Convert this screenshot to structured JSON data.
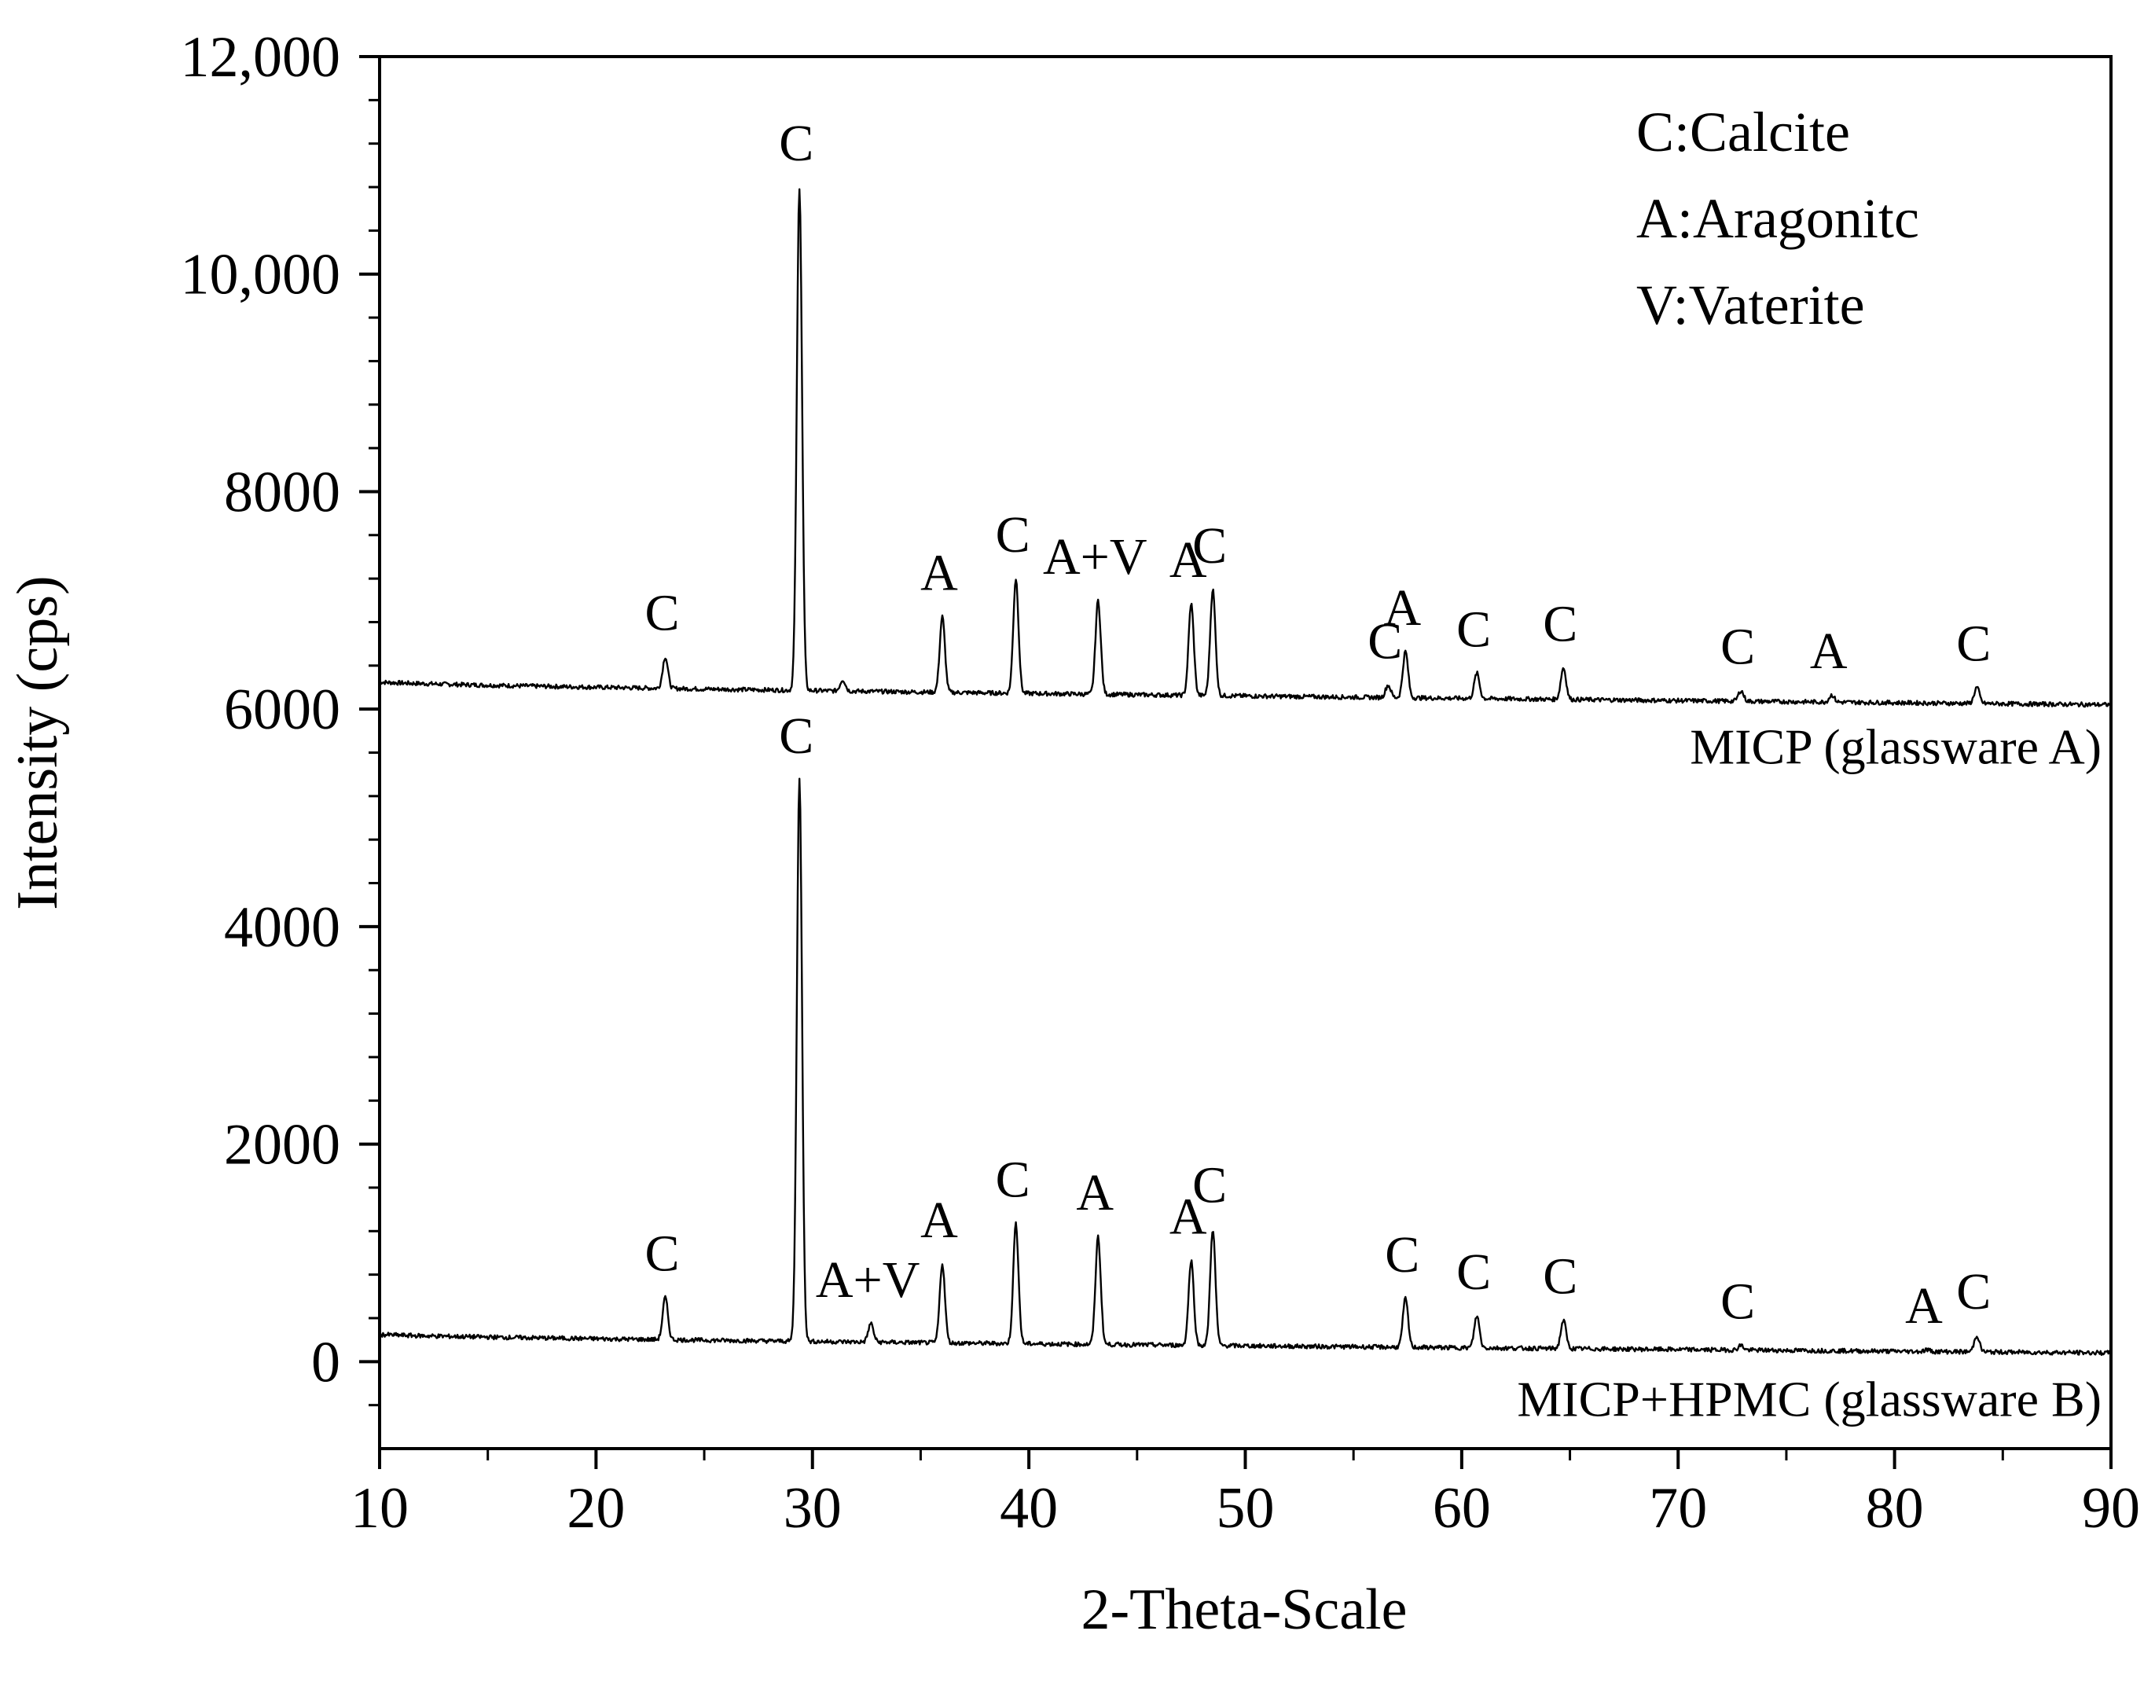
{
  "chart_data": {
    "type": "line",
    "title": "",
    "xlabel": "2-Theta-Scale",
    "ylabel": "Intensity (cps)",
    "xlim": [
      10,
      90
    ],
    "ylim": [
      -800,
      12000
    ],
    "x_ticks": [
      {
        "value": 10,
        "label": "10"
      },
      {
        "value": 20,
        "label": "20"
      },
      {
        "value": 30,
        "label": "30"
      },
      {
        "value": 40,
        "label": "40"
      },
      {
        "value": 50,
        "label": "50"
      },
      {
        "value": 60,
        "label": "60"
      },
      {
        "value": 70,
        "label": "70"
      },
      {
        "value": 80,
        "label": "80"
      },
      {
        "value": 90,
        "label": "90"
      }
    ],
    "y_ticks": [
      {
        "value": 0,
        "label": "0"
      },
      {
        "value": 2000,
        "label": "2000"
      },
      {
        "value": 4000,
        "label": "4000"
      },
      {
        "value": 6000,
        "label": "6000"
      },
      {
        "value": 8000,
        "label": "8000"
      },
      {
        "value": 10000,
        "label": "10,000"
      },
      {
        "value": 12000,
        "label": "12,000"
      }
    ],
    "legend": {
      "position": "top-right",
      "entries": [
        "C:Calcite",
        "A:Aragonitc",
        "V:Vaterite"
      ]
    },
    "series": [
      {
        "name": "MICP (glassware A)",
        "baseline_start": 6250,
        "baseline_end": 6040,
        "peaks": [
          {
            "x": 23.2,
            "y": 6480,
            "label": "C"
          },
          {
            "x": 29.4,
            "y": 10800,
            "label": "C"
          },
          {
            "x": 31.4,
            "y": 6270,
            "label": ""
          },
          {
            "x": 36.0,
            "y": 6850,
            "label": "A"
          },
          {
            "x": 39.4,
            "y": 7200,
            "label": "C"
          },
          {
            "x": 43.2,
            "y": 7000,
            "label": "A+V"
          },
          {
            "x": 47.5,
            "y": 6970,
            "label": "A"
          },
          {
            "x": 48.5,
            "y": 7100,
            "label": "C"
          },
          {
            "x": 56.6,
            "y": 6220,
            "label": "C"
          },
          {
            "x": 57.4,
            "y": 6530,
            "label": "A"
          },
          {
            "x": 60.7,
            "y": 6330,
            "label": "C"
          },
          {
            "x": 64.7,
            "y": 6380,
            "label": "C"
          },
          {
            "x": 72.9,
            "y": 6170,
            "label": "C"
          },
          {
            "x": 77.1,
            "y": 6130,
            "label": "A"
          },
          {
            "x": 83.8,
            "y": 6200,
            "label": "C"
          }
        ]
      },
      {
        "name": "MICP+HPMC (glassware B)",
        "baseline_start": 250,
        "baseline_end": 80,
        "peaks": [
          {
            "x": 23.2,
            "y": 590,
            "label": "C"
          },
          {
            "x": 29.4,
            "y": 5350,
            "label": "C"
          },
          {
            "x": 32.7,
            "y": 350,
            "label": "A+V"
          },
          {
            "x": 36.0,
            "y": 900,
            "label": "A"
          },
          {
            "x": 39.4,
            "y": 1270,
            "label": "C"
          },
          {
            "x": 43.2,
            "y": 1150,
            "label": "A"
          },
          {
            "x": 47.5,
            "y": 930,
            "label": "A"
          },
          {
            "x": 48.5,
            "y": 1220,
            "label": "C"
          },
          {
            "x": 57.4,
            "y": 580,
            "label": "C"
          },
          {
            "x": 60.7,
            "y": 420,
            "label": "C"
          },
          {
            "x": 64.7,
            "y": 380,
            "label": "C"
          },
          {
            "x": 72.9,
            "y": 150,
            "label": "C"
          },
          {
            "x": 81.5,
            "y": 110,
            "label": "A"
          },
          {
            "x": 83.8,
            "y": 240,
            "label": "C"
          }
        ]
      }
    ]
  }
}
